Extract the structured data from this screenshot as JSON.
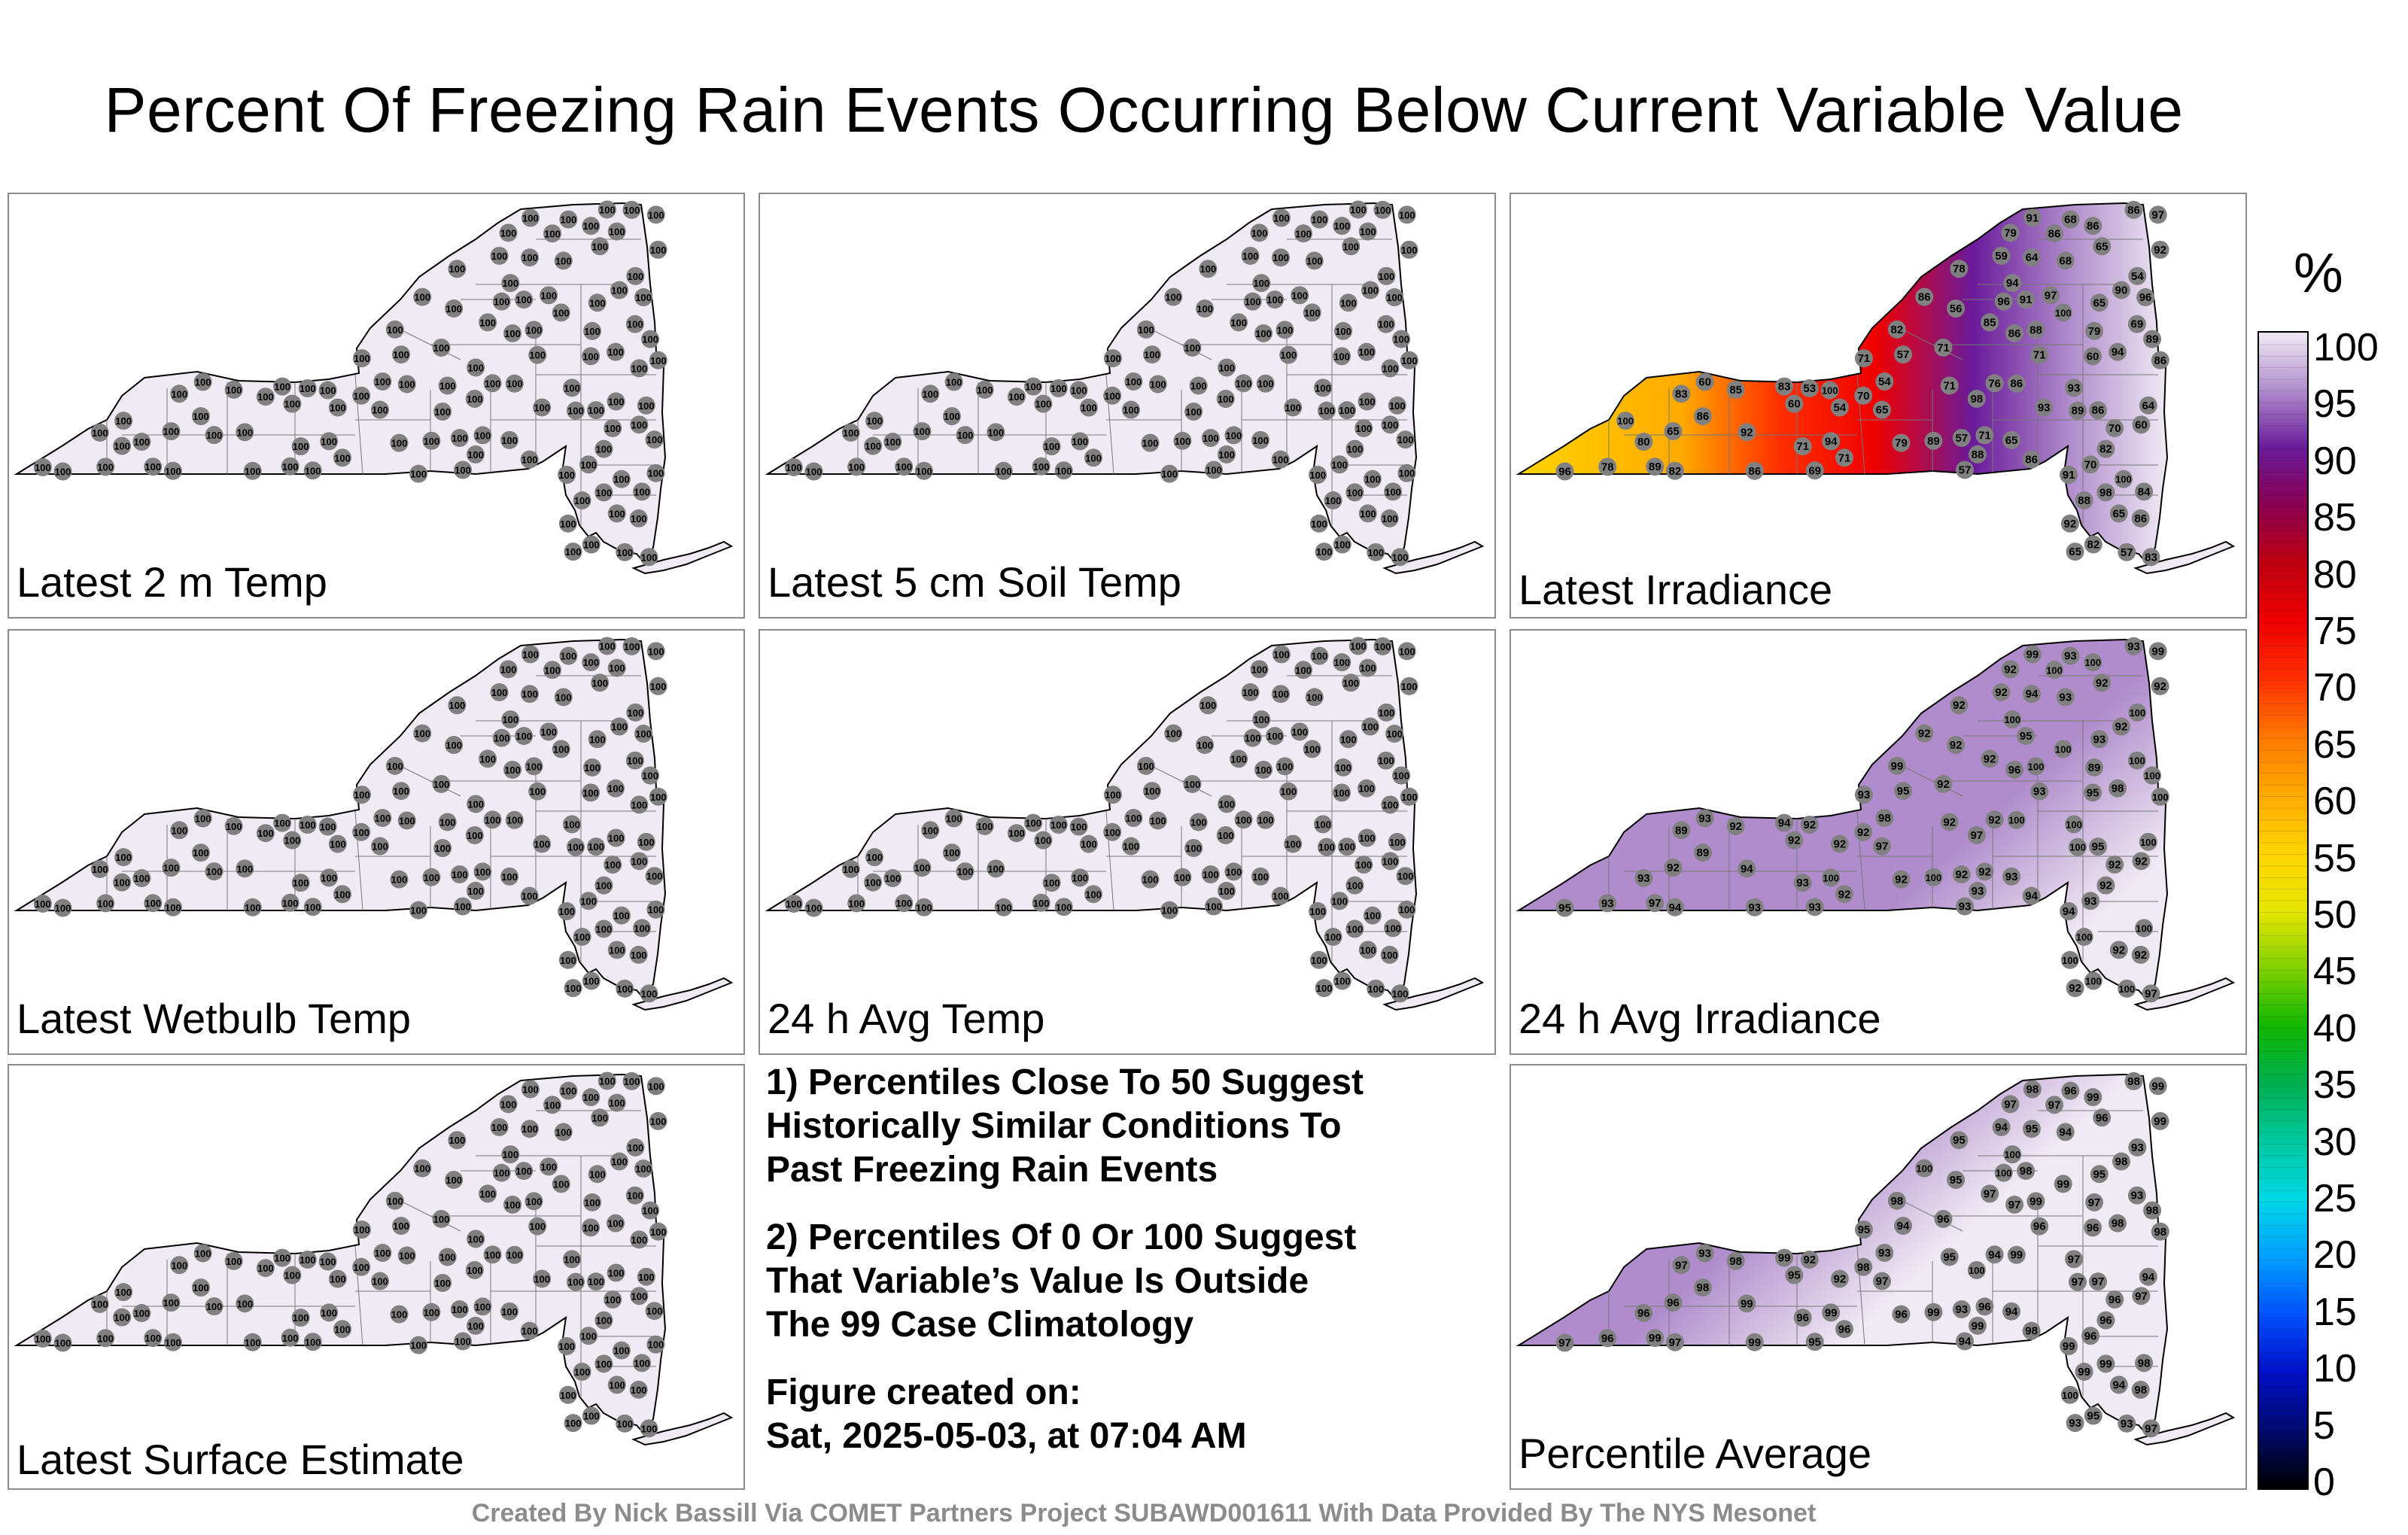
{
  "title": "Percent Of Freezing Rain Events Occurring Below Current Variable Value",
  "colorbar": {
    "unit": "%",
    "ticks": [
      "100",
      "95",
      "90",
      "85",
      "80",
      "75",
      "70",
      "65",
      "60",
      "55",
      "50",
      "45",
      "40",
      "35",
      "30",
      "25",
      "20",
      "15",
      "10",
      "5",
      "0"
    ],
    "stops": [
      {
        "value": 0,
        "color": "#000000"
      },
      {
        "value": 5,
        "color": "#000a6e"
      },
      {
        "value": 10,
        "color": "#0010c8"
      },
      {
        "value": 15,
        "color": "#0050ff"
      },
      {
        "value": 20,
        "color": "#00a0ff"
      },
      {
        "value": 25,
        "color": "#00d8e6"
      },
      {
        "value": 30,
        "color": "#00c8a0"
      },
      {
        "value": 35,
        "color": "#00b050"
      },
      {
        "value": 40,
        "color": "#10b800"
      },
      {
        "value": 45,
        "color": "#80d000"
      },
      {
        "value": 50,
        "color": "#e6e600"
      },
      {
        "value": 55,
        "color": "#ffd400"
      },
      {
        "value": 60,
        "color": "#ffaa00"
      },
      {
        "value": 65,
        "color": "#ff7800"
      },
      {
        "value": 70,
        "color": "#ff3000"
      },
      {
        "value": 75,
        "color": "#f00000"
      },
      {
        "value": 80,
        "color": "#c00010"
      },
      {
        "value": 85,
        "color": "#8a0050"
      },
      {
        "value": 90,
        "color": "#6a1a9a"
      },
      {
        "value": 95,
        "color": "#b08ccc"
      },
      {
        "value": 100,
        "color": "#f0eaf4"
      }
    ]
  },
  "panels": [
    {
      "label": "Latest 2 m Temp",
      "fill": "#f0eaf4",
      "values": [
        "100",
        "100",
        "100",
        "100",
        "100",
        "100",
        "100",
        "100",
        "100",
        "100",
        "100",
        "100",
        "100",
        "100",
        "100",
        "100",
        "100",
        "100",
        "100",
        "100",
        "100",
        "100",
        "100",
        "100",
        "100",
        "100",
        "100",
        "100",
        "100",
        "100",
        "100",
        "100",
        "100",
        "100",
        "100",
        "100",
        "100",
        "100",
        "100",
        "100",
        "100",
        "100",
        "100",
        "100",
        "100",
        "100",
        "100",
        "100",
        "100",
        "100",
        "100",
        "100",
        "100",
        "100",
        "100",
        "100",
        "100",
        "100",
        "100",
        "100",
        "100",
        "100",
        "100",
        "100",
        "100",
        "100",
        "100",
        "100",
        "100",
        "100",
        "100",
        "100",
        "100",
        "100",
        "100",
        "100",
        "100",
        "100",
        "100",
        "100",
        "100",
        "100",
        "100",
        "100",
        "100",
        "100",
        "100",
        "100",
        "100",
        "100",
        "100",
        "100",
        "100",
        "100",
        "100",
        "100",
        "100",
        "100",
        "100",
        "100",
        "100",
        "100",
        "100",
        "100",
        "100",
        "100",
        "100",
        "100",
        "100",
        "100",
        "100",
        "100"
      ]
    },
    {
      "label": "Latest 5 cm Soil Temp",
      "fill": "#f0eaf4",
      "values": [
        "100",
        "100",
        "100",
        "100",
        "100",
        "100",
        "100",
        "100",
        "100",
        "100",
        "100",
        "100",
        "100",
        "100",
        "100",
        "100",
        "100",
        "100",
        "100",
        "100",
        "100",
        "100",
        "100",
        "100",
        "100",
        "100",
        "100",
        "100",
        "100",
        "100",
        "100",
        "100",
        "100",
        "100",
        "100",
        "100",
        "100",
        "100",
        "100",
        "100",
        "100",
        "100",
        "100",
        "100",
        "100",
        "100",
        "100",
        "100",
        "100",
        "100",
        "100",
        "100",
        "100",
        "100",
        "100",
        "100",
        "100",
        "100",
        "100",
        "100",
        "100",
        "100",
        "100",
        "100",
        "100",
        "100",
        "100",
        "100",
        "100",
        "100",
        "100",
        "100",
        "100",
        "100",
        "100",
        "100",
        "100",
        "100",
        "100",
        "100",
        "100",
        "100",
        "100",
        "100",
        "100",
        "100",
        "100",
        "100",
        "100",
        "100",
        "100",
        "100",
        "100",
        "100",
        "100",
        "100",
        "100",
        "100",
        "100",
        "100",
        "100",
        "100",
        "100",
        "100",
        "100",
        "100",
        "100",
        "100",
        "100",
        "100",
        "100",
        "100"
      ]
    },
    {
      "label": "Latest Irradiance",
      "fill": "gradient",
      "values": [
        "54",
        "53",
        "57",
        "54",
        "57",
        "54",
        "60",
        "56",
        "65",
        "57",
        "69",
        "59",
        "65",
        "65",
        "57",
        "65",
        "68",
        "60",
        "64",
        "69",
        "71",
        "71",
        "71",
        "82",
        "60",
        "71",
        "64",
        "71",
        "70",
        "78",
        "80",
        "82",
        "86",
        "96",
        "65",
        "78",
        "68",
        "76",
        "65",
        "82",
        "71",
        "70",
        "86",
        "86",
        "60",
        "65",
        "70",
        "79",
        "83",
        "79",
        "71",
        "86",
        "91",
        "86",
        "91",
        "89",
        "79",
        "85",
        "84",
        "90",
        "92",
        "86",
        "88",
        "88",
        "86",
        "94",
        "92",
        "85",
        "83",
        "89",
        "83",
        "86",
        "86",
        "82",
        "89",
        "93",
        "100",
        "98",
        "94",
        "91",
        "86",
        "94",
        "88",
        "92",
        "97",
        "86",
        "89",
        "86",
        "96",
        "98",
        "100",
        "97",
        "93",
        "100",
        "96",
        "100"
      ]
    },
    {
      "label": "Latest Wetbulb Temp",
      "fill": "#f0eaf4",
      "values": [
        "100",
        "100",
        "100",
        "100",
        "100",
        "100",
        "100",
        "100",
        "100",
        "100",
        "100",
        "100",
        "100",
        "100",
        "100",
        "100",
        "100",
        "100",
        "100",
        "100",
        "100",
        "100",
        "100",
        "100",
        "100",
        "100",
        "100",
        "100",
        "100",
        "100",
        "100",
        "100",
        "100",
        "100",
        "100",
        "100",
        "100",
        "100",
        "100",
        "100",
        "100",
        "100",
        "100",
        "100",
        "100",
        "100",
        "100",
        "100",
        "100",
        "100",
        "100",
        "100",
        "100",
        "100",
        "100",
        "100",
        "100",
        "100",
        "100",
        "100",
        "100",
        "100",
        "100",
        "100",
        "100",
        "100",
        "100",
        "100",
        "100",
        "100",
        "100",
        "100",
        "100",
        "100",
        "100",
        "100",
        "100",
        "100",
        "100",
        "100",
        "100",
        "100",
        "100",
        "100",
        "100",
        "100",
        "100",
        "100",
        "100",
        "100",
        "100",
        "100",
        "100",
        "100",
        "100",
        "100",
        "100",
        "100",
        "100",
        "100",
        "100",
        "100",
        "100",
        "100",
        "100",
        "100",
        "100",
        "100",
        "100",
        "100",
        "100",
        "100"
      ]
    },
    {
      "label": "24 h Avg Temp",
      "fill": "#f0eaf4",
      "values": [
        "100",
        "100",
        "100",
        "100",
        "100",
        "100",
        "100",
        "100",
        "100",
        "100",
        "100",
        "100",
        "100",
        "100",
        "100",
        "100",
        "100",
        "100",
        "100",
        "100",
        "100",
        "100",
        "100",
        "100",
        "100",
        "100",
        "100",
        "100",
        "100",
        "100",
        "100",
        "100",
        "100",
        "100",
        "100",
        "100",
        "100",
        "100",
        "100",
        "100",
        "100",
        "100",
        "100",
        "100",
        "100",
        "100",
        "100",
        "100",
        "100",
        "100",
        "100",
        "100",
        "100",
        "100",
        "100",
        "100",
        "100",
        "100",
        "100",
        "100",
        "100",
        "100",
        "100",
        "100",
        "100",
        "100",
        "100",
        "100",
        "100",
        "100",
        "100",
        "100",
        "100",
        "100",
        "100",
        "100",
        "100",
        "100",
        "100",
        "100",
        "100",
        "100",
        "100",
        "100",
        "100",
        "100",
        "100",
        "100",
        "100",
        "100",
        "100",
        "100",
        "100",
        "100",
        "100",
        "100",
        "100",
        "100",
        "100",
        "100",
        "100",
        "100",
        "100",
        "100",
        "100",
        "100",
        "100",
        "100",
        "100",
        "100",
        "100",
        "100"
      ]
    },
    {
      "label": "24 h Avg Irradiance",
      "fill": "gradient2",
      "values": [
        "92",
        "92",
        "95",
        "98",
        "100",
        "100",
        "92",
        "92",
        "93",
        "92",
        "100",
        "92",
        "92",
        "92",
        "93",
        "93",
        "93",
        "93",
        "94",
        "93",
        "92",
        "93",
        "92",
        "92",
        "95",
        "92",
        "100",
        "92",
        "93",
        "92",
        "93",
        "94",
        "95",
        "95",
        "92",
        "93",
        "93",
        "92",
        "92",
        "100",
        "93",
        "92",
        "94",
        "89",
        "92",
        "97",
        "92",
        "89",
        "89",
        "92",
        "93",
        "92",
        "94",
        "93",
        "95",
        "97",
        "92",
        "92",
        "100",
        "92",
        "94",
        "92",
        "93",
        "100",
        "93",
        "100",
        "92",
        "92",
        "94",
        "100",
        "97",
        "96",
        "100",
        "99",
        "100",
        "100",
        "100",
        "97",
        "98",
        "99",
        "100",
        "100",
        "100",
        "100",
        "99",
        "100",
        "100",
        "100"
      ]
    },
    {
      "label": "Latest Surface Estimate",
      "fill": "#f0eaf4",
      "values": [
        "100",
        "100",
        "100",
        "100",
        "100",
        "100",
        "100",
        "100",
        "100",
        "100",
        "100",
        "100",
        "100",
        "100",
        "100",
        "100",
        "100",
        "100",
        "100",
        "100",
        "100",
        "100",
        "100",
        "100",
        "100",
        "100",
        "100",
        "100",
        "100",
        "100",
        "100",
        "100",
        "100",
        "100",
        "100",
        "100",
        "100",
        "100",
        "100",
        "100",
        "100",
        "100",
        "100",
        "100",
        "100",
        "100",
        "100",
        "100",
        "100",
        "100",
        "100",
        "100",
        "100",
        "100",
        "100",
        "100",
        "100",
        "100",
        "100",
        "100",
        "100",
        "100",
        "100",
        "100",
        "100",
        "100",
        "100",
        "100",
        "100",
        "100",
        "100",
        "100",
        "100",
        "100",
        "100",
        "100",
        "100",
        "100",
        "100",
        "100",
        "100",
        "100",
        "100",
        "100",
        "100",
        "100",
        "100",
        "100",
        "100",
        "100",
        "100",
        "100",
        "100",
        "100",
        "100",
        "100",
        "100",
        "100",
        "100",
        "100",
        "100",
        "100",
        "100",
        "100",
        "100",
        "100",
        "100",
        "100",
        "100",
        "100",
        "100",
        "100"
      ]
    },
    {
      "label": "Percentile Average",
      "fill": "gradient3",
      "values": [
        "92",
        "92",
        "94",
        "93",
        "93",
        "93",
        "95",
        "95",
        "94",
        "93",
        "93",
        "94",
        "93",
        "94",
        "94",
        "95",
        "94",
        "93",
        "95",
        "95",
        "96",
        "95",
        "95",
        "96",
        "96",
        "96",
        "94",
        "96",
        "96",
        "95",
        "96",
        "97",
        "97",
        "97",
        "96",
        "96",
        "96",
        "94",
        "96",
        "95",
        "96",
        "96",
        "98",
        "98",
        "97",
        "97",
        "98",
        "97",
        "97",
        "96",
        "96",
        "98",
        "99",
        "99",
        "98",
        "99",
        "97",
        "97",
        "98",
        "98",
        "99",
        "100",
        "99",
        "99",
        "98",
        "100",
        "99",
        "98",
        "99",
        "99",
        "97",
        "97",
        "97",
        "98",
        "97",
        "97",
        "99",
        "100",
        "98",
        "98",
        "99",
        "99",
        "99",
        "100",
        "99",
        "99",
        "98",
        "98",
        "100",
        "99"
      ]
    }
  ],
  "notes": {
    "note1": "1) Percentiles Close To 50 Suggest\nHistorically Similar Conditions To\nPast Freezing Rain Events",
    "note2": "2) Percentiles Of 0 Or 100 Suggest\nThat Variable’s Value Is Outside\nThe 99 Case Climatology",
    "created_label": "Figure created on:",
    "created_date": "Sat, 2025-05-03, at 07:04 AM"
  },
  "footer": "Created By Nick Bassill Via COMET Partners Project SUBAWD001611 With Data Provided By The NYS Mesonet"
}
